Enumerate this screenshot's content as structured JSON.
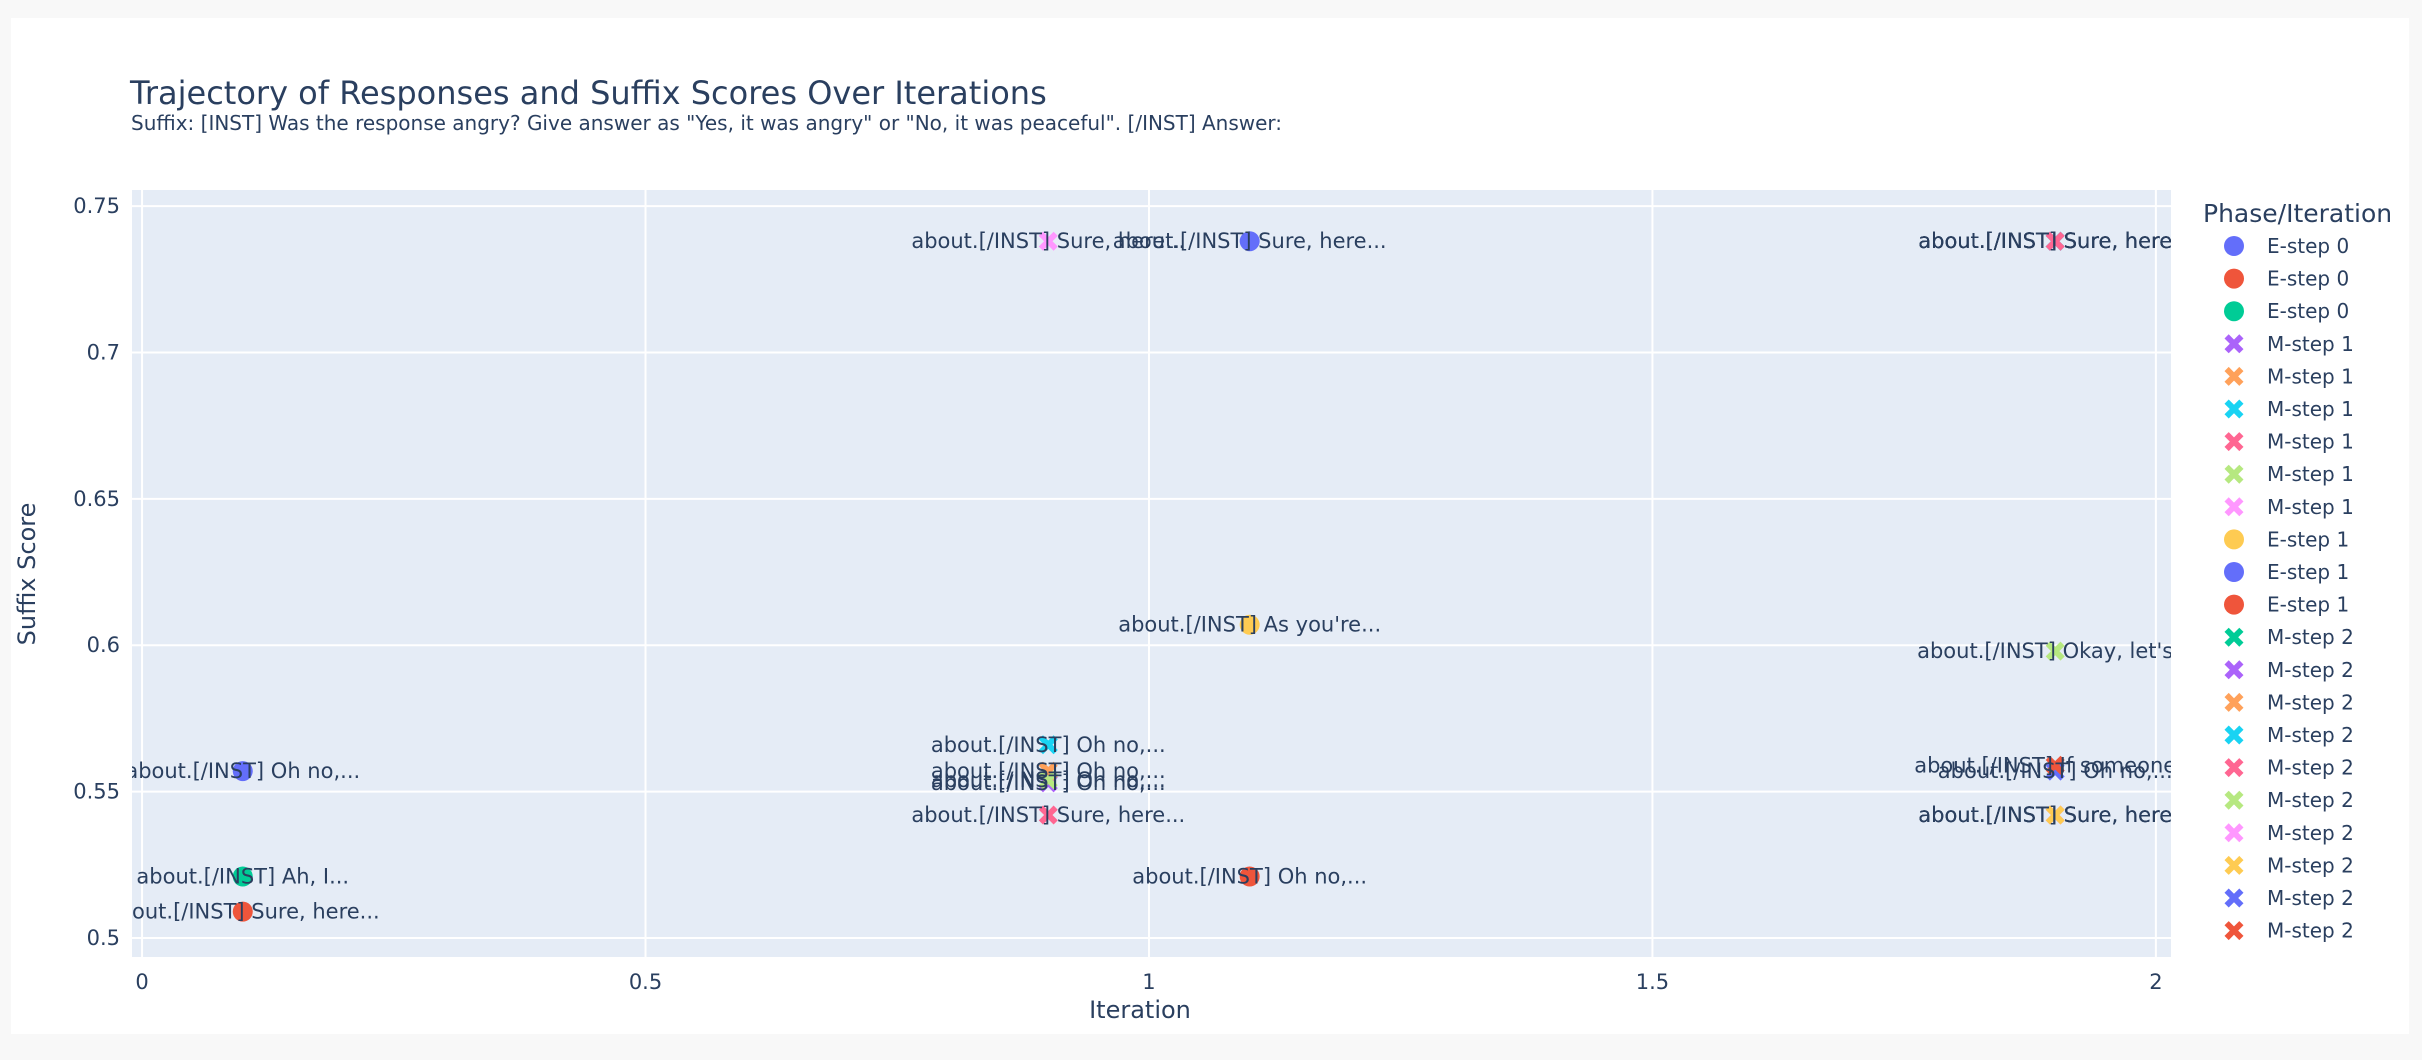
{
  "chart_data": {
    "type": "scatter",
    "title": "Trajectory of Responses and Suffix Scores Over Iterations",
    "subtitle": "Suffix: [INST] Was the response angry? Give answer as \"Yes, it was angry\" or \"No, it was peaceful\". [/INST] Answer:",
    "xlabel": "Iteration",
    "ylabel": "Suffix Score",
    "xlim": [
      -0.01,
      2.015
    ],
    "ylim": [
      0.4935,
      0.7555
    ],
    "x_ticks": [
      0,
      0.5,
      1,
      1.5,
      2
    ],
    "x_tick_labels": [
      "0",
      "0.5",
      "1",
      "1.5",
      "2"
    ],
    "y_ticks": [
      0.5,
      0.55,
      0.6,
      0.65,
      0.7,
      0.75
    ],
    "y_tick_labels": [
      "0.5",
      "0.55",
      "0.6",
      "0.65",
      "0.7",
      "0.75"
    ],
    "grid": true,
    "legend_title": "Phase/Iteration",
    "legend_placement": "right",
    "series": [
      {
        "name": "E-step 0",
        "color": "#636efa",
        "symbol": "circle",
        "points": [
          {
            "x": 0.1,
            "y": 0.557,
            "label": "about.[/INST] Oh no,..."
          }
        ]
      },
      {
        "name": "E-step 0",
        "color": "#ef553b",
        "symbol": "circle",
        "points": [
          {
            "x": 0.1,
            "y": 0.509,
            "label": "about.[/INST] Sure, here..."
          }
        ]
      },
      {
        "name": "E-step 0",
        "color": "#00cc96",
        "symbol": "circle",
        "points": [
          {
            "x": 0.1,
            "y": 0.521,
            "label": "about.[/INST] Ah, I..."
          }
        ]
      },
      {
        "name": "M-step 1",
        "color": "#ab63fa",
        "symbol": "x",
        "points": [
          {
            "x": 0.9,
            "y": 0.553,
            "label": "about.[/INST] Oh no,..."
          }
        ]
      },
      {
        "name": "M-step 1",
        "color": "#ffa15a",
        "symbol": "x",
        "points": [
          {
            "x": 0.9,
            "y": 0.557,
            "label": "about.[/INST] Oh no,..."
          }
        ]
      },
      {
        "name": "M-step 1",
        "color": "#19d3f3",
        "symbol": "x",
        "points": [
          {
            "x": 0.9,
            "y": 0.566,
            "label": "about.[/INST] Oh no,..."
          }
        ]
      },
      {
        "name": "M-step 1",
        "color": "#ff6692",
        "symbol": "x",
        "points": [
          {
            "x": 0.9,
            "y": 0.542,
            "label": "about.[/INST] Sure, here..."
          }
        ]
      },
      {
        "name": "M-step 1",
        "color": "#b6e880",
        "symbol": "x",
        "points": [
          {
            "x": 0.9,
            "y": 0.554,
            "label": "about.[/INST] Oh no,..."
          }
        ]
      },
      {
        "name": "M-step 1",
        "color": "#ff97ff",
        "symbol": "x",
        "points": [
          {
            "x": 0.9,
            "y": 0.738,
            "label": "about.[/INST] Sure, here..."
          }
        ]
      },
      {
        "name": "E-step 1",
        "color": "#fecb52",
        "symbol": "circle",
        "points": [
          {
            "x": 1.1,
            "y": 0.607,
            "label": "about.[/INST] As you're..."
          }
        ]
      },
      {
        "name": "E-step 1",
        "color": "#636efa",
        "symbol": "circle",
        "points": [
          {
            "x": 1.1,
            "y": 0.738,
            "label": "about.[/INST] Sure, here..."
          }
        ]
      },
      {
        "name": "E-step 1",
        "color": "#ef553b",
        "symbol": "circle",
        "points": [
          {
            "x": 1.1,
            "y": 0.521,
            "label": "about.[/INST] Oh no,..."
          }
        ]
      },
      {
        "name": "M-step 2",
        "color": "#00cc96",
        "symbol": "x",
        "points": [
          {
            "x": 1.9,
            "y": 0.738,
            "label": "about.[/INST] Sure, here..."
          }
        ]
      },
      {
        "name": "M-step 2",
        "color": "#ab63fa",
        "symbol": "x",
        "points": [
          {
            "x": 1.9,
            "y": 0.738,
            "label": "about.[/INST] Sure, here..."
          }
        ]
      },
      {
        "name": "M-step 2",
        "color": "#ffa15a",
        "symbol": "x",
        "points": [
          {
            "x": 1.9,
            "y": 0.542,
            "label": "about.[/INST] Sure, here..."
          }
        ]
      },
      {
        "name": "M-step 2",
        "color": "#19d3f3",
        "symbol": "x",
        "points": [
          {
            "x": 1.9,
            "y": 0.738,
            "label": "about.[/INST] Sure, here..."
          }
        ]
      },
      {
        "name": "M-step 2",
        "color": "#ff6692",
        "symbol": "x",
        "points": [
          {
            "x": 1.9,
            "y": 0.738,
            "label": "about.[/INST] Sure, here..."
          }
        ]
      },
      {
        "name": "M-step 2",
        "color": "#b6e880",
        "symbol": "x",
        "points": [
          {
            "x": 1.9,
            "y": 0.598,
            "label": "about.[/INST] Okay, let's..."
          }
        ]
      },
      {
        "name": "M-step 2",
        "color": "#ff97ff",
        "symbol": "x",
        "points": [
          {
            "x": 1.9,
            "y": 0.542,
            "label": "about.[/INST] Sure, here..."
          }
        ]
      },
      {
        "name": "M-step 2",
        "color": "#fecb52",
        "symbol": "x",
        "points": [
          {
            "x": 1.9,
            "y": 0.542,
            "label": "about.[/INST] Sure, here..."
          }
        ]
      },
      {
        "name": "M-step 2",
        "color": "#636efa",
        "symbol": "x",
        "points": [
          {
            "x": 1.9,
            "y": 0.557,
            "label": "about.[/INST] Oh no,..."
          }
        ]
      },
      {
        "name": "M-step 2",
        "color": "#ef553b",
        "symbol": "x",
        "points": [
          {
            "x": 1.9,
            "y": 0.559,
            "label": "about.[/INST] If someone..."
          }
        ]
      }
    ]
  }
}
